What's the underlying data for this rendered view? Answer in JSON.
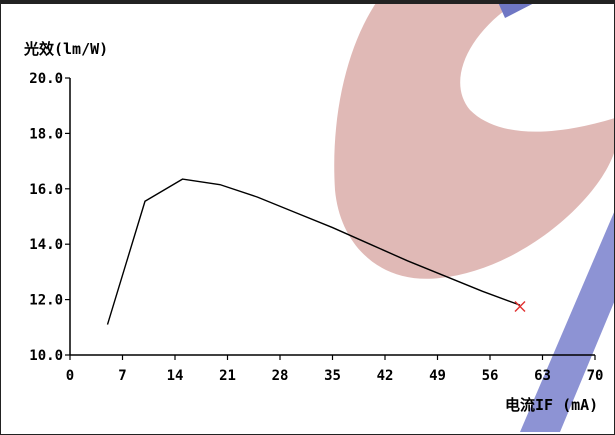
{
  "chart_data": {
    "type": "line",
    "ylabel": "光效(lm/W)",
    "xlabel": "电流IF (mA)",
    "x_ticks": [
      "0",
      "7",
      "14",
      "21",
      "28",
      "35",
      "42",
      "49",
      "56",
      "63",
      "70"
    ],
    "y_ticks": [
      "10.0",
      "12.0",
      "14.0",
      "16.0",
      "18.0",
      "20.0"
    ],
    "xlim": [
      0,
      70
    ],
    "ylim": [
      10,
      20
    ],
    "grid": false,
    "series": [
      {
        "x": [
          5,
          10,
          15,
          20,
          25,
          30,
          35,
          40,
          45,
          50,
          55,
          60
        ],
        "y": [
          11.1,
          15.55,
          16.35,
          16.15,
          15.7,
          15.15,
          14.6,
          14.0,
          13.4,
          12.85,
          12.3,
          11.8
        ],
        "color": "#000000"
      }
    ],
    "marker": {
      "x": 60,
      "y": 11.75,
      "symbol": "x",
      "color": "#e03030"
    }
  },
  "colors": {
    "watermark_red": "#ddb3b0",
    "watermark_blue": "#6f77c4"
  }
}
